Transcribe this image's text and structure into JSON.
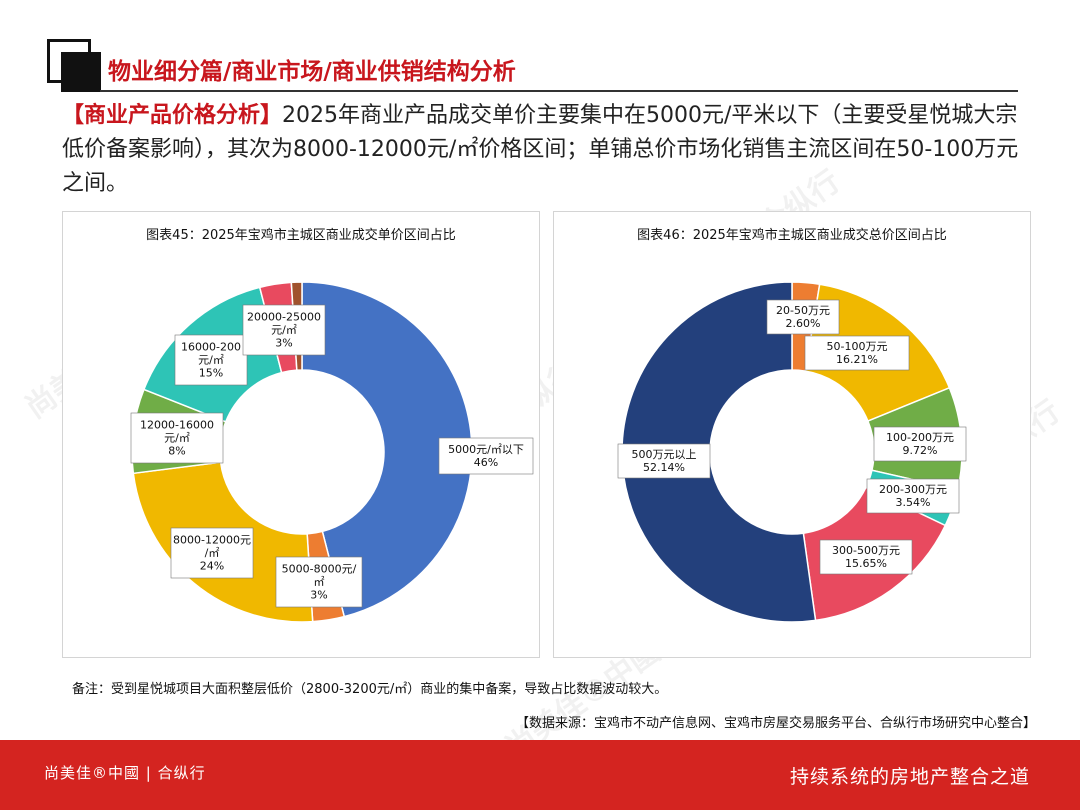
{
  "header": {
    "title": "物业细分篇/商业市场/商业供销结构分析"
  },
  "intro": {
    "highlight": "【商业产品价格分析】",
    "text": "2025年商业产品成交单价主要集中在5000元/平米以下（主要受星悦城大宗低价备案影响），其次为8000-12000元/㎡价格区间；单铺总价市场化销售主流区间在50-100万元之间。"
  },
  "note": "备注：受到星悦城项目大面积整层低价（2800-3200元/㎡）商业的集中备案，导致占比数据波动较大。",
  "source": "【数据来源：宝鸡市不动产信息网、宝鸡市房屋交易服务平台、合纵行市场研究中心整合】",
  "footer": {
    "brand": "尚美佳®中國 | 合纵行",
    "slogan": "持续系统的房地产整合之道"
  },
  "chart_data": [
    {
      "type": "pie",
      "title": "图表45：2025年宝鸡市主城区商业成交单价区间占比",
      "slices": [
        {
          "label": [
            "5000元/㎡以下",
            "46%"
          ],
          "value": 46,
          "color": "#4472c4"
        },
        {
          "label": [
            "5000-8000元/",
            "㎡",
            "3%"
          ],
          "value": 3,
          "color": "#ed7d31"
        },
        {
          "label": [
            "8000-12000元",
            "/㎡",
            "24%"
          ],
          "value": 24,
          "color": "#f0b800"
        },
        {
          "label": [
            "12000-16000",
            "元/㎡",
            "8%"
          ],
          "value": 8,
          "color": "#70ad47"
        },
        {
          "label": [
            "16000-200",
            "元/㎡",
            "15%"
          ],
          "value": 15,
          "color": "#2ec4b6"
        },
        {
          "label": [
            "20000-25000",
            "元/㎡",
            "3%"
          ],
          "value": 3,
          "color": "#e84a5f"
        },
        {
          "label": [],
          "value": 1,
          "color": "#a0522d"
        }
      ]
    },
    {
      "type": "pie",
      "title": "图表46：2025年宝鸡市主城区商业成交总价区间占比",
      "slices": [
        {
          "label": [
            "20-50万元",
            "2.60%"
          ],
          "value": 2.6,
          "color": "#ed7d31"
        },
        {
          "label": [
            "50-100万元",
            "16.21%"
          ],
          "value": 16.21,
          "color": "#f0b800"
        },
        {
          "label": [
            "100-200万元",
            "9.72%"
          ],
          "value": 9.72,
          "color": "#70ad47"
        },
        {
          "label": [
            "200-300万元",
            "3.54%"
          ],
          "value": 3.54,
          "color": "#2ec4b6"
        },
        {
          "label": [
            "300-500万元",
            "15.65%"
          ],
          "value": 15.65,
          "color": "#e84a5f"
        },
        {
          "label": [
            "500万元以上",
            "52.14%"
          ],
          "value": 52.14,
          "color": "#23407c"
        }
      ]
    }
  ]
}
